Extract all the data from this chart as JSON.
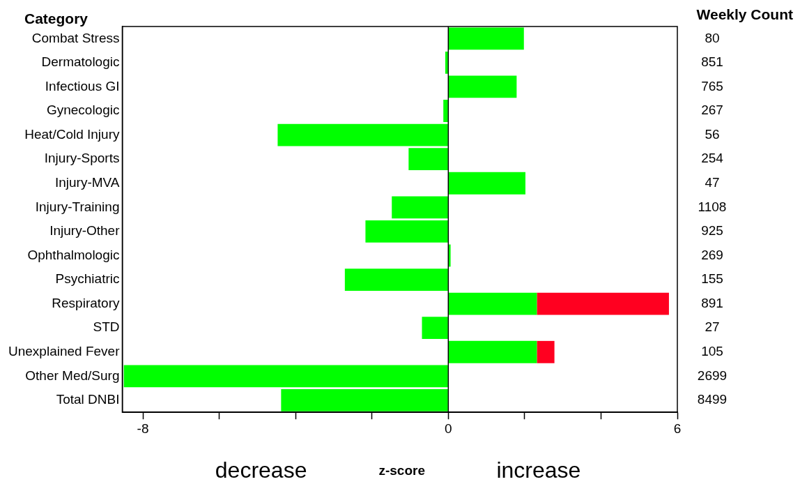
{
  "chart_data": {
    "type": "bar",
    "orientation": "horizontal",
    "stacked": true,
    "ylabel": "Category",
    "y2label": "Weekly Count",
    "xlabel": "z-score",
    "categories": [
      "Combat Stress",
      "Dermatologic",
      "Infectious GI",
      "Gynecologic",
      "Heat/Cold Injury",
      "Injury-Sports",
      "Injury-MVA",
      "Injury-Training",
      "Injury-Other",
      "Ophthalmologic",
      "Psychiatric",
      "Respiratory",
      "STD",
      "Unexplained Fever",
      "Other Med/Surg",
      "Total DNBI"
    ],
    "series": [
      {
        "color": "#00ff00",
        "values": [
          1.98,
          -0.08,
          1.79,
          -0.13,
          -4.47,
          -1.04,
          2.02,
          -1.48,
          -2.17,
          0.06,
          -2.71,
          2.32,
          -0.69,
          2.32,
          -8.5,
          -4.38
        ]
      },
      {
        "color": "#ff0020",
        "values": [
          null,
          null,
          null,
          null,
          null,
          null,
          null,
          null,
          null,
          null,
          null,
          3.46,
          null,
          0.46,
          null,
          null
        ]
      }
    ],
    "xlim": [
      -8.54,
      6
    ],
    "xticks": [
      -8,
      {
        "value": -6,
        "label": null
      },
      {
        "value": -4,
        "label": null
      },
      {
        "value": -2,
        "label": null
      },
      0,
      {
        "value": 2,
        "label": null
      },
      {
        "value": 4,
        "label": null
      },
      6
    ],
    "ref_lines": [
      {
        "axis": "x",
        "value": 0,
        "color": "#000000"
      }
    ],
    "grid": false,
    "legend": false,
    "annotations": [
      "80",
      "851",
      "765",
      "267",
      "56",
      "254",
      "47",
      "1108",
      "925",
      "269",
      "155",
      "891",
      "27",
      "105",
      "2699",
      "8499",
      "decrease",
      "increase"
    ]
  }
}
